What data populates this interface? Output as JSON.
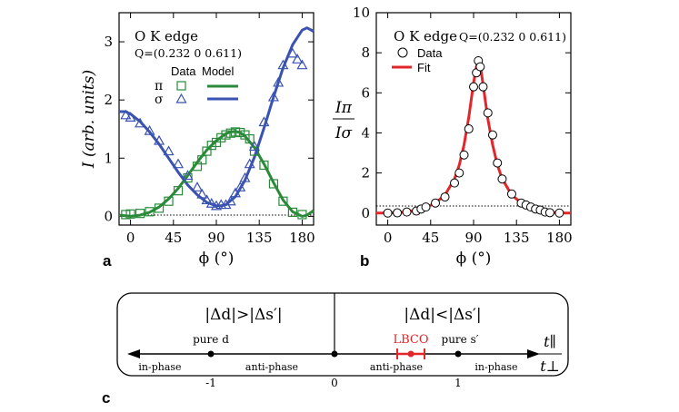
{
  "colors": {
    "pi": "#2a8a3a",
    "sigma": "#3a52b0",
    "fit": "#e2262a",
    "axis": "#000000"
  },
  "panel_labels": {
    "a": "a",
    "b": "b",
    "c": "c"
  },
  "chart_data": [
    {
      "id": "a",
      "type": "scatter",
      "title_line1": "O K edge",
      "title_line2": "Q=(0.232 0 0.611)",
      "xlabel": "ϕ (°)",
      "ylabel": "I (arb. units)",
      "xlim": [
        -12,
        192
      ],
      "ylim": [
        -0.15,
        3.5
      ],
      "xticks": [
        0,
        45,
        90,
        135,
        180
      ],
      "yticks": [
        0,
        1,
        2,
        3
      ],
      "legend": {
        "placement": "top-left",
        "header_data": "Data",
        "header_model": "Model",
        "labels": [
          "π",
          "σ"
        ]
      },
      "series": [
        {
          "name": "π",
          "kind": "data",
          "marker": "square",
          "x": [
            -5,
            0,
            10,
            20,
            30,
            40,
            50,
            60,
            70,
            75,
            80,
            85,
            90,
            95,
            100,
            105,
            110,
            115,
            120,
            125,
            130,
            140,
            150,
            160,
            170,
            180
          ],
          "y": [
            0.03,
            0.04,
            0.05,
            0.08,
            0.14,
            0.26,
            0.44,
            0.66,
            0.86,
            0.97,
            1.12,
            1.22,
            1.27,
            1.35,
            1.4,
            1.43,
            1.45,
            1.44,
            1.4,
            1.33,
            1.12,
            0.88,
            0.56,
            0.26,
            0.07,
            0.03
          ]
        },
        {
          "name": "σ",
          "kind": "data",
          "marker": "triangle",
          "x": [
            -5,
            0,
            10,
            20,
            30,
            40,
            50,
            60,
            70,
            75,
            80,
            85,
            90,
            95,
            100,
            105,
            110,
            115,
            120,
            125,
            130,
            140,
            150,
            155,
            160,
            170,
            175,
            180
          ],
          "y": [
            1.74,
            1.7,
            1.6,
            1.47,
            1.3,
            1.12,
            0.9,
            0.7,
            0.5,
            0.38,
            0.28,
            0.22,
            0.18,
            0.2,
            0.2,
            0.26,
            0.4,
            0.5,
            0.66,
            0.9,
            1.2,
            1.62,
            2.05,
            2.3,
            2.6,
            2.8,
            2.7,
            2.6
          ]
        },
        {
          "name": "π",
          "kind": "model",
          "x": [
            -12,
            -5,
            0,
            10,
            20,
            30,
            40,
            50,
            60,
            70,
            80,
            90,
            100,
            105,
            110,
            115,
            120,
            130,
            140,
            150,
            160,
            170,
            180,
            185,
            192
          ],
          "y": [
            0.02,
            0.01,
            0.0,
            0.02,
            0.07,
            0.16,
            0.3,
            0.48,
            0.7,
            0.93,
            1.14,
            1.3,
            1.42,
            1.45,
            1.46,
            1.44,
            1.38,
            1.18,
            0.9,
            0.58,
            0.28,
            0.08,
            0.0,
            0.02,
            0.1
          ]
        },
        {
          "name": "σ",
          "kind": "model",
          "x": [
            -12,
            -5,
            0,
            10,
            20,
            30,
            40,
            50,
            60,
            70,
            80,
            90,
            95,
            100,
            110,
            120,
            130,
            140,
            150,
            160,
            170,
            180,
            185,
            192
          ],
          "y": [
            1.8,
            1.8,
            1.76,
            1.63,
            1.45,
            1.24,
            1.0,
            0.76,
            0.54,
            0.37,
            0.24,
            0.18,
            0.18,
            0.2,
            0.34,
            0.62,
            1.02,
            1.52,
            2.05,
            2.55,
            2.95,
            3.2,
            3.24,
            3.18
          ]
        }
      ]
    },
    {
      "id": "b",
      "type": "scatter",
      "title_line1": "O K edge",
      "title_line2": "Q=(0.232 0 0.611)",
      "xlabel": "ϕ (°)",
      "ylabel_num": "Iπ",
      "ylabel_den": "Iσ",
      "xlim": [
        -12,
        192
      ],
      "ylim": [
        -0.6,
        10
      ],
      "xticks": [
        0,
        45,
        90,
        135,
        180
      ],
      "yticks": [
        0,
        2,
        4,
        6,
        8,
        10
      ],
      "legend": {
        "placement": "top-left",
        "labels": [
          "Data",
          "Fit"
        ]
      },
      "series": [
        {
          "name": "Data",
          "kind": "data",
          "marker": "circle",
          "x": [
            0,
            10,
            20,
            30,
            35,
            40,
            50,
            60,
            70,
            75,
            80,
            85,
            90,
            93,
            95,
            97,
            100,
            105,
            110,
            115,
            120,
            130,
            140,
            145,
            150,
            155,
            160,
            165,
            170,
            180
          ],
          "y": [
            0.0,
            0.01,
            0.05,
            0.1,
            0.2,
            0.3,
            0.5,
            0.8,
            1.5,
            2.0,
            2.9,
            4.2,
            6.3,
            7.0,
            7.6,
            7.3,
            6.3,
            5.0,
            3.9,
            2.5,
            1.7,
            0.95,
            0.5,
            0.4,
            0.3,
            0.2,
            0.15,
            0.05,
            0.02,
            0.0
          ]
        },
        {
          "name": "Fit",
          "kind": "model",
          "x": [
            -12,
            0,
            10,
            20,
            30,
            40,
            50,
            60,
            70,
            75,
            80,
            85,
            90,
            93,
            95,
            97,
            100,
            105,
            110,
            115,
            120,
            130,
            140,
            150,
            160,
            170,
            180,
            192
          ],
          "y": [
            0.0,
            0.0,
            0.02,
            0.06,
            0.14,
            0.28,
            0.5,
            0.9,
            1.7,
            2.4,
            3.4,
            4.8,
            6.5,
            7.3,
            7.6,
            7.4,
            6.4,
            4.7,
            3.4,
            2.4,
            1.7,
            0.9,
            0.5,
            0.3,
            0.15,
            0.05,
            0.0,
            0.0
          ]
        }
      ]
    }
  ],
  "diagram_c": {
    "left_header": "|Δd|>|Δs′|",
    "right_header": "|Δd|<|Δs′|",
    "ticks": [
      "-1",
      "0",
      "1"
    ],
    "top_labels": [
      "pure d",
      "pure s′"
    ],
    "lbco_label": "LBCO",
    "phase_labels": [
      "in-phase",
      "anti-phase",
      "anti-phase",
      "in-phase"
    ],
    "ratio_num": "t∥",
    "ratio_den": "t⊥"
  }
}
